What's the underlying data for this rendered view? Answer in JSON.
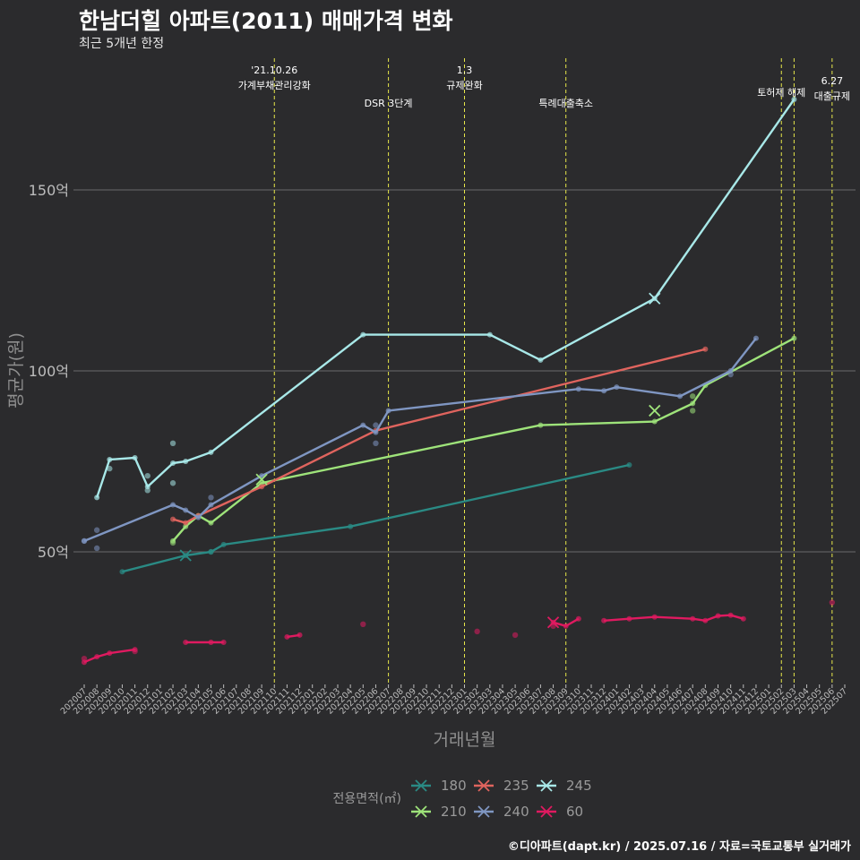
{
  "header": {
    "title": "한남더힐 아파트(2011) 매매가격 변화",
    "subtitle": "최근 5개년 한정"
  },
  "caption": "©디아파트(dapt.kr) / 2025.07.16 / 자료=국토교통부 실거래가",
  "colors": {
    "background": "#2b2b2d",
    "grid": "#6a6a6a",
    "event_line": "#e8e84a",
    "axis_text": "#bdbdbd"
  },
  "chart_data": {
    "type": "line",
    "xlabel": "거래년월",
    "ylabel": "평균가(원)",
    "ylim": [
      -15,
      187
    ],
    "xlim": [
      "202007",
      "202507"
    ],
    "grid": true,
    "legend_position": "bottom",
    "legend_title": "전용면적(㎡)",
    "y_ticks": [
      {
        "value": 50,
        "label": "50억"
      },
      {
        "value": 100,
        "label": "100억"
      },
      {
        "value": 150,
        "label": "150억"
      }
    ],
    "x_ticks": [
      "202007",
      "202008",
      "202009",
      "202010",
      "202011",
      "202012",
      "202101",
      "202102",
      "202103",
      "202104",
      "202105",
      "202106",
      "202107",
      "202108",
      "202109",
      "202110",
      "202111",
      "202112",
      "202201",
      "202202",
      "202203",
      "202204",
      "202205",
      "202206",
      "202207",
      "202208",
      "202209",
      "202210",
      "202211",
      "202212",
      "202301",
      "202302",
      "202303",
      "202304",
      "202305",
      "202306",
      "202307",
      "202308",
      "202309",
      "202310",
      "202311",
      "202312",
      "202401",
      "202402",
      "202403",
      "202404",
      "202405",
      "202406",
      "202407",
      "202408",
      "202409",
      "202410",
      "202411",
      "202412",
      "202501",
      "202502",
      "202503",
      "202504",
      "202505",
      "202506",
      "202507"
    ],
    "events": [
      {
        "x": "202110",
        "lines": [
          "'21.10.26",
          "가계부채관리강화"
        ],
        "label_y": 179
      },
      {
        "x": "202207",
        "lines": [
          "DSR 3단계"
        ],
        "label_y": 174
      },
      {
        "x": "202301",
        "lines": [
          "1.3",
          "규제완화"
        ],
        "label_y": 179
      },
      {
        "x": "202309",
        "lines": [
          "특례대출축소"
        ],
        "label_y": 174
      },
      {
        "x": "202502",
        "lines": [
          "토허제 해제"
        ],
        "label_y": 177
      },
      {
        "x": "202503",
        "lines": [],
        "label_y": 0
      },
      {
        "x": "202506",
        "lines": [
          "6.27",
          "대출규제"
        ],
        "label_y": 176
      }
    ],
    "series": [
      {
        "name": "180",
        "color": "#2a8a84",
        "x": [
          "202010",
          "202103",
          "202105",
          "202106",
          "202204",
          "202402"
        ],
        "y": [
          44.5,
          49,
          50,
          52,
          57,
          74
        ]
      },
      {
        "name": "210",
        "color": "#9ee37a",
        "x": [
          "202102",
          "202103",
          "202104",
          "202105",
          "202109",
          "202307",
          "202404",
          "202407",
          "202408",
          "202503"
        ],
        "y": [
          53,
          57,
          60,
          58,
          69,
          85,
          86,
          91,
          96,
          109
        ]
      },
      {
        "name": "235",
        "color": "#e0645e",
        "x": [
          "202102",
          "202103",
          "202104",
          "202109",
          "202206",
          "202408"
        ],
        "y": [
          59,
          58,
          60,
          68,
          83.5,
          106
        ]
      },
      {
        "name": "240",
        "color": "#7f96c2",
        "x": [
          "202007",
          "202102",
          "202103",
          "202104",
          "202105",
          "202109",
          "202205",
          "202206",
          "202207",
          "202310",
          "202312",
          "202401",
          "202406",
          "202410",
          "202412"
        ],
        "y": [
          53,
          63,
          61.5,
          59.5,
          63,
          71,
          85,
          83,
          89,
          95,
          94.5,
          95.5,
          93,
          100,
          109
        ]
      },
      {
        "name": "245",
        "color": "#a8e8e8",
        "x": [
          "202008",
          "202009",
          "202011",
          "202012",
          "202102",
          "202103",
          "202105",
          "202205",
          "202303",
          "202307",
          "202404",
          "202503"
        ],
        "y": [
          65,
          75.5,
          76,
          68,
          74.5,
          75,
          77.5,
          110,
          110,
          103,
          120,
          175
        ]
      },
      {
        "name": "60",
        "color": "#e01a60",
        "segments": [
          {
            "x": [
              "202007",
              "202008",
              "202009",
              "202011"
            ],
            "y": [
              19.5,
              21,
              22,
              23
            ]
          },
          {
            "x": [
              "202103",
              "202105",
              "202106"
            ],
            "y": [
              25,
              25,
              25
            ]
          },
          {
            "x": [
              "202111",
              "202112"
            ],
            "y": [
              26.5,
              27
            ]
          },
          {
            "x": [
              "202308",
              "202309",
              "202310"
            ],
            "y": [
              30.5,
              29.5,
              31.5
            ]
          },
          {
            "x": [
              "202312",
              "202402",
              "202404",
              "202407",
              "202408",
              "202409",
              "202410",
              "202411"
            ],
            "y": [
              31,
              31.5,
              32,
              31.5,
              31,
              32.3,
              32.5,
              31.5
            ]
          }
        ]
      }
    ],
    "extra_points": [
      {
        "series": "180",
        "x": "202105",
        "y": 50
      },
      {
        "series": "210",
        "x": "202102",
        "y": 52.5
      },
      {
        "series": "210",
        "x": "202407",
        "y": 89
      },
      {
        "series": "210",
        "x": "202407",
        "y": 93
      },
      {
        "series": "240",
        "x": "202007",
        "y": 53
      },
      {
        "series": "240",
        "x": "202008",
        "y": 56
      },
      {
        "series": "240",
        "x": "202008",
        "y": 51
      },
      {
        "series": "240",
        "x": "202105",
        "y": 65
      },
      {
        "series": "240",
        "x": "202206",
        "y": 80
      },
      {
        "series": "240",
        "x": "202206",
        "y": 85
      },
      {
        "series": "240",
        "x": "202410",
        "y": 99
      },
      {
        "series": "245",
        "x": "202009",
        "y": 73
      },
      {
        "series": "245",
        "x": "202012",
        "y": 67
      },
      {
        "series": "245",
        "x": "202102",
        "y": 80
      },
      {
        "series": "245",
        "x": "202102",
        "y": 69
      },
      {
        "series": "245",
        "x": "202012",
        "y": 71
      },
      {
        "series": "60",
        "x": "202007",
        "y": 20.5
      },
      {
        "series": "60",
        "x": "202011",
        "y": 22.5
      },
      {
        "series": "60",
        "x": "202205",
        "y": 30
      },
      {
        "series": "60",
        "x": "202302",
        "y": 28
      },
      {
        "series": "60",
        "x": "202305",
        "y": 27
      },
      {
        "series": "60",
        "x": "202308",
        "y": 29.5
      },
      {
        "series": "60",
        "x": "202506",
        "y": 36
      }
    ],
    "cross_markers": [
      {
        "series": "180",
        "x": "202103",
        "y": 49
      },
      {
        "series": "210",
        "x": "202109",
        "y": 70
      },
      {
        "series": "210",
        "x": "202404",
        "y": 89
      },
      {
        "series": "245",
        "x": "202404",
        "y": 120
      },
      {
        "series": "60",
        "x": "202308",
        "y": 30.5
      }
    ]
  }
}
